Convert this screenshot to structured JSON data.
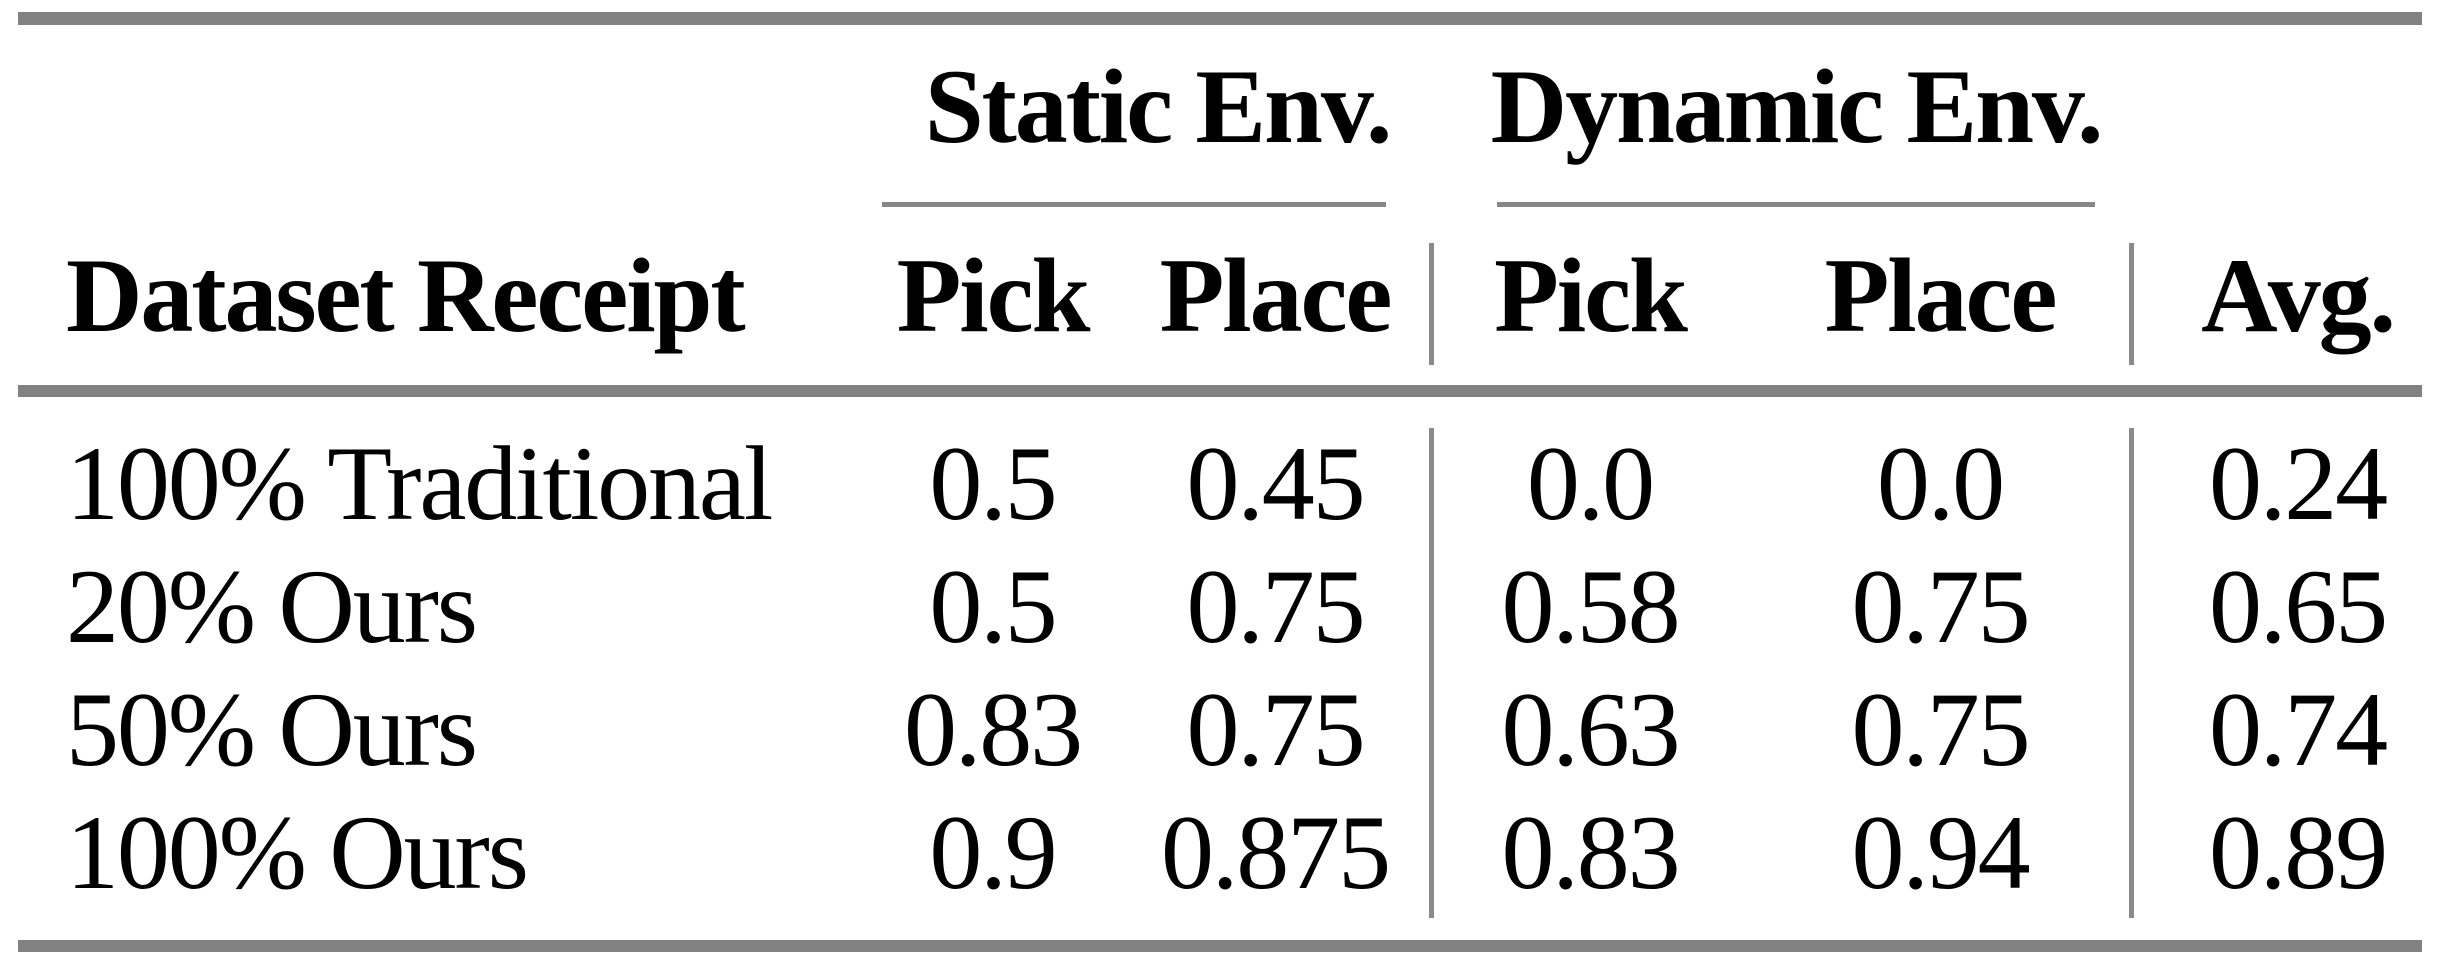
{
  "table": {
    "column_groups": [
      {
        "label": "Static Env."
      },
      {
        "label": "Dynamic Env."
      }
    ],
    "columns": [
      "Dataset Receipt",
      "Pick",
      "Place",
      "Pick",
      "Place",
      "Avg."
    ],
    "rows": [
      {
        "label": "100% Traditional",
        "values": [
          "0.5",
          "0.45",
          "0.0",
          "0.0",
          "0.24"
        ]
      },
      {
        "label": "20% Ours",
        "values": [
          "0.5",
          "0.75",
          "0.58",
          "0.75",
          "0.65"
        ]
      },
      {
        "label": "50% Ours",
        "values": [
          "0.83",
          "0.75",
          "0.63",
          "0.75",
          "0.74"
        ]
      },
      {
        "label": "100% Ours",
        "values": [
          "0.9",
          "0.875",
          "0.83",
          "0.94",
          "0.89"
        ]
      }
    ],
    "colors": {
      "rule_thick": "#828282",
      "rule_thin": "#878787",
      "text": "#000000",
      "background": "#ffffff"
    }
  },
  "chart_data": {
    "type": "table",
    "title": "",
    "column_groups": [
      "Static Env.",
      "Dynamic Env."
    ],
    "columns": [
      "Dataset Receipt",
      "Static Pick",
      "Static Place",
      "Dynamic Pick",
      "Dynamic Place",
      "Avg."
    ],
    "rows": [
      [
        "100% Traditional",
        0.5,
        0.45,
        0.0,
        0.0,
        0.24
      ],
      [
        "20% Ours",
        0.5,
        0.75,
        0.58,
        0.75,
        0.65
      ],
      [
        "50% Ours",
        0.83,
        0.75,
        0.63,
        0.75,
        0.74
      ],
      [
        "100% Ours",
        0.9,
        0.875,
        0.83,
        0.94,
        0.89
      ]
    ]
  }
}
